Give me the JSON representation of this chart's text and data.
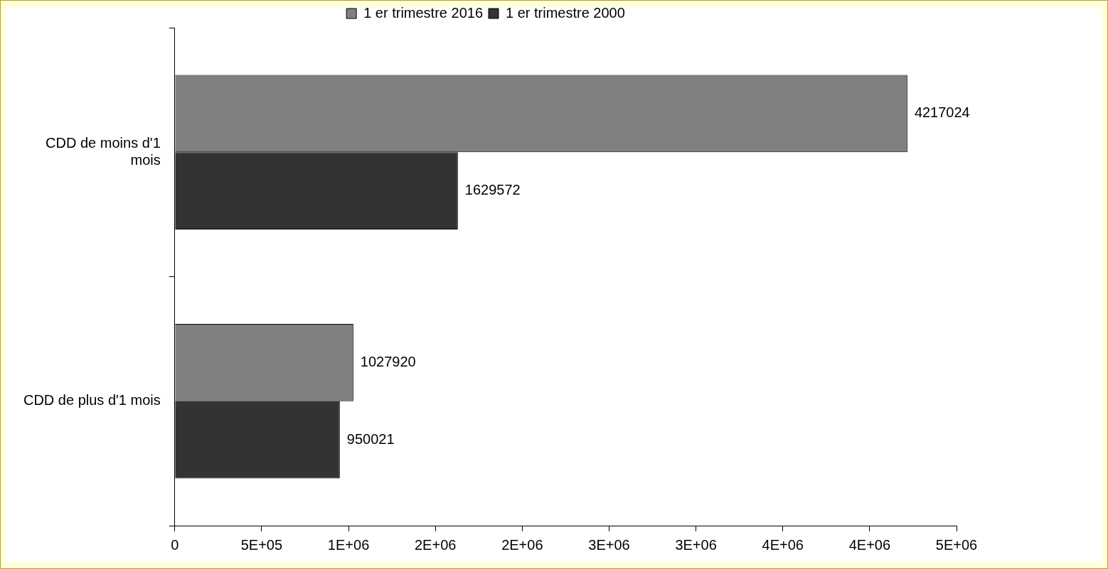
{
  "chart_data": {
    "type": "bar",
    "orientation": "horizontal",
    "categories": [
      "CDD de moins d'1 mois",
      "CDD de plus d'1 mois"
    ],
    "series": [
      {
        "name": "1 er trimestre 2016",
        "color": "#808080",
        "values": [
          4217024,
          1027920
        ]
      },
      {
        "name": "1 er trimestre 2000",
        "color": "#333333",
        "values": [
          1629572,
          950021
        ]
      }
    ],
    "xlim": [
      0,
      4500000
    ],
    "xticks": [
      0,
      {
        "value": 500000,
        "label": "5E+05"
      },
      {
        "value": 1000000,
        "label": "1E+06"
      },
      {
        "value": 1500000,
        "label": "2E+06"
      },
      {
        "value": 2000000,
        "label": "2E+06"
      },
      {
        "value": 2500000,
        "label": "3E+06"
      },
      {
        "value": 3000000,
        "label": "3E+06"
      },
      {
        "value": 3500000,
        "label": "4E+06"
      },
      {
        "value": 4000000,
        "label": "4E+06"
      },
      {
        "value": 4500000,
        "label": "5E+06"
      }
    ],
    "grid": false,
    "legend": "top",
    "data_labels": true
  }
}
